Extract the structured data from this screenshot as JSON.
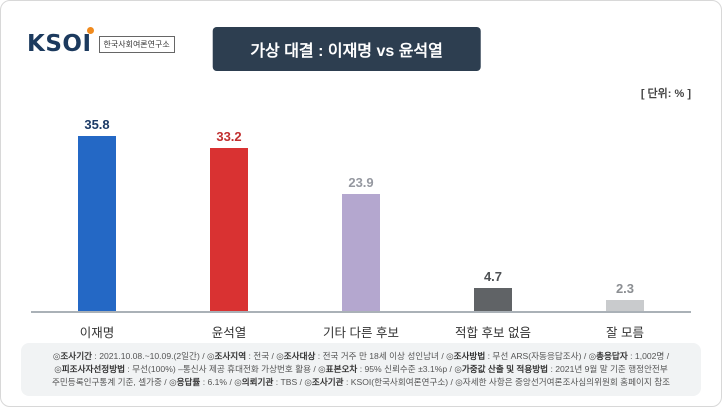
{
  "brand": {
    "logo_text": "KSOI",
    "logo_sub": "한국사회여론연구소"
  },
  "header": {
    "title": "가상 대결 : 이재명 vs 윤석열",
    "unit_label": "[ 단위: % ]"
  },
  "chart_data": {
    "type": "bar",
    "title": "가상 대결 : 이재명 vs 윤석열",
    "categories": [
      "이재명",
      "윤석열",
      "기타 다른 후보",
      "적합 후보 없음",
      "잘 모름"
    ],
    "values": [
      35.8,
      33.2,
      23.9,
      4.7,
      2.3
    ],
    "unit": "%",
    "ylim": [
      0,
      40
    ],
    "grid": false,
    "legend": "none",
    "bar_colors": [
      "#2468c5",
      "#d93232",
      "#b4a7cf",
      "#606366",
      "#c9cbcd"
    ],
    "label_colors": [
      "#1b3a66",
      "#c12f2f",
      "#9598a0",
      "#4e5154",
      "#8b8e92"
    ]
  },
  "footer": {
    "lines": [
      "◎조사기간 : 2021.10.08.~10.09.(2일간) / ◎조사지역 : 전국 / ◎조사대상 : 전국 거주 만 18세 이상 성인남녀 / ◎조사방법 : 무선 ARS(자동응답조사) / ◎총응답자 : 1,002명 /",
      "◎피조사자선정방법 : 무선(100%) –통신사 제공 휴대전화 가상번호 활용 / ◎표본오차 : 95% 신뢰수준 ±3.1%p / ◎가중값 산출 및 적용방법 : 2021년 9월 말 기준 행정안전부",
      "주민등록인구통계 기준, 셀가중 / ◎응답률 : 6.1% / ◎의뢰기관 : TBS / ◎조사기관 : KSOI(한국사회여론연구소) / ◎자세한 사항은 중앙선거여론조사심의위원회 홈페이지 참조"
    ]
  }
}
